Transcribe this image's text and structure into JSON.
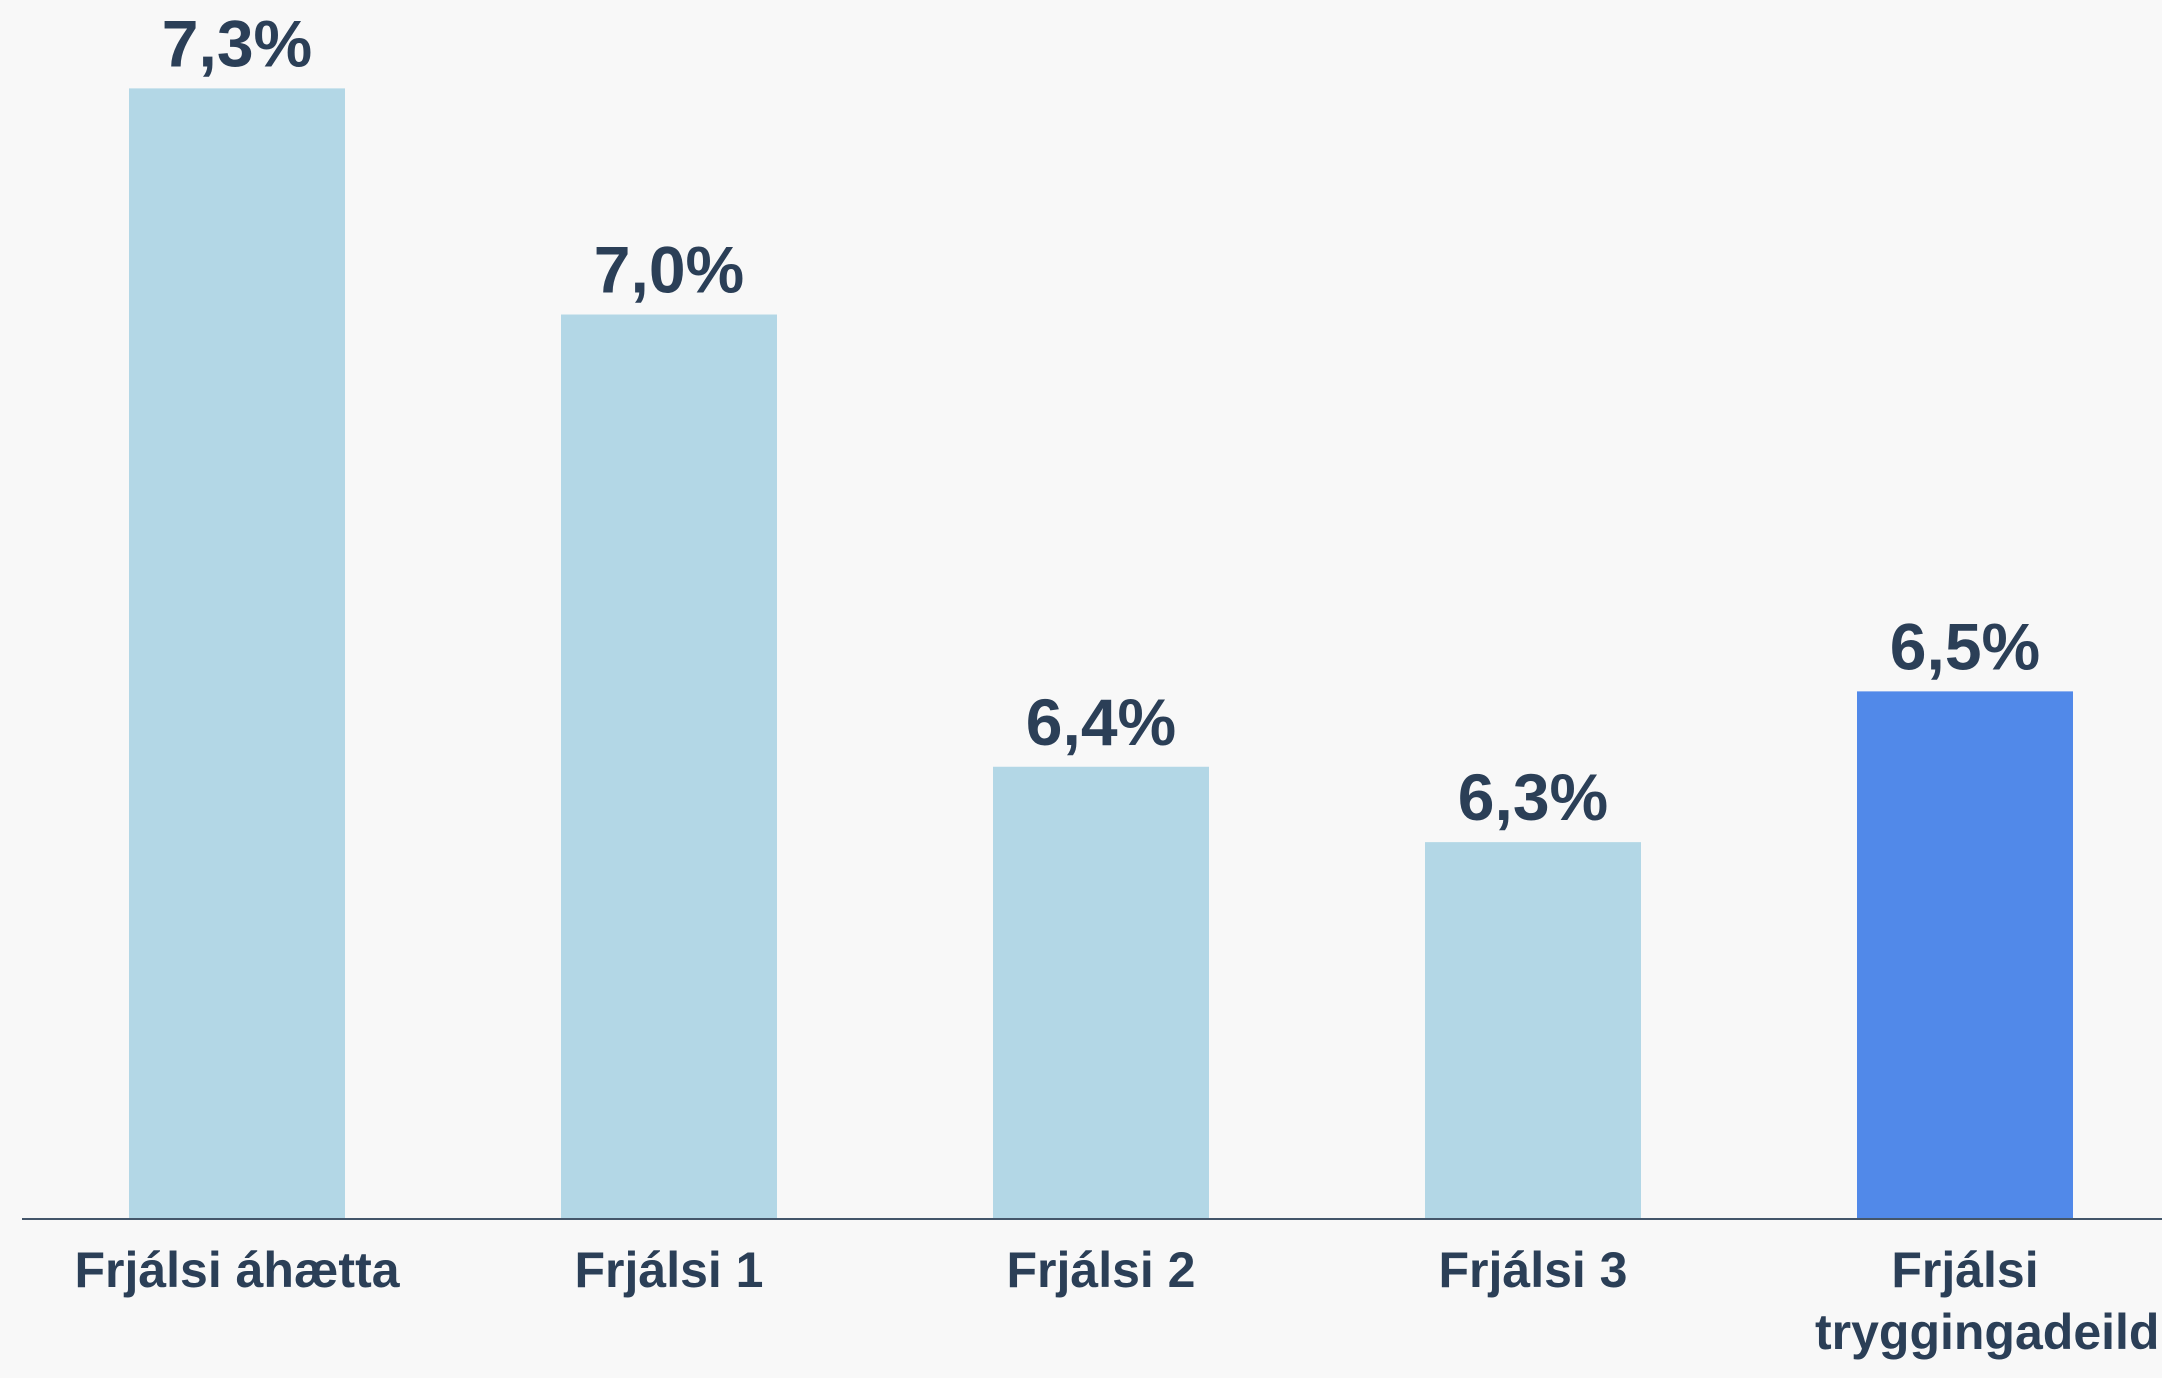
{
  "chart_data": {
    "type": "bar",
    "categories": [
      "Frjálsi áhætta",
      "Frjálsi 1",
      "Frjálsi 2",
      "Frjálsi 3",
      "Frjálsi tryggingadeild"
    ],
    "values": [
      7.3,
      7.0,
      6.4,
      6.3,
      6.5
    ],
    "value_labels": [
      "7,3%",
      "7,0%",
      "6,4%",
      "6,3%",
      "6,5%"
    ],
    "colors": [
      "#b3d7e6",
      "#b3d7e6",
      "#b3d7e6",
      "#b3d7e6",
      "#5189e9"
    ],
    "ylim": [
      5.8,
      7.4
    ]
  }
}
